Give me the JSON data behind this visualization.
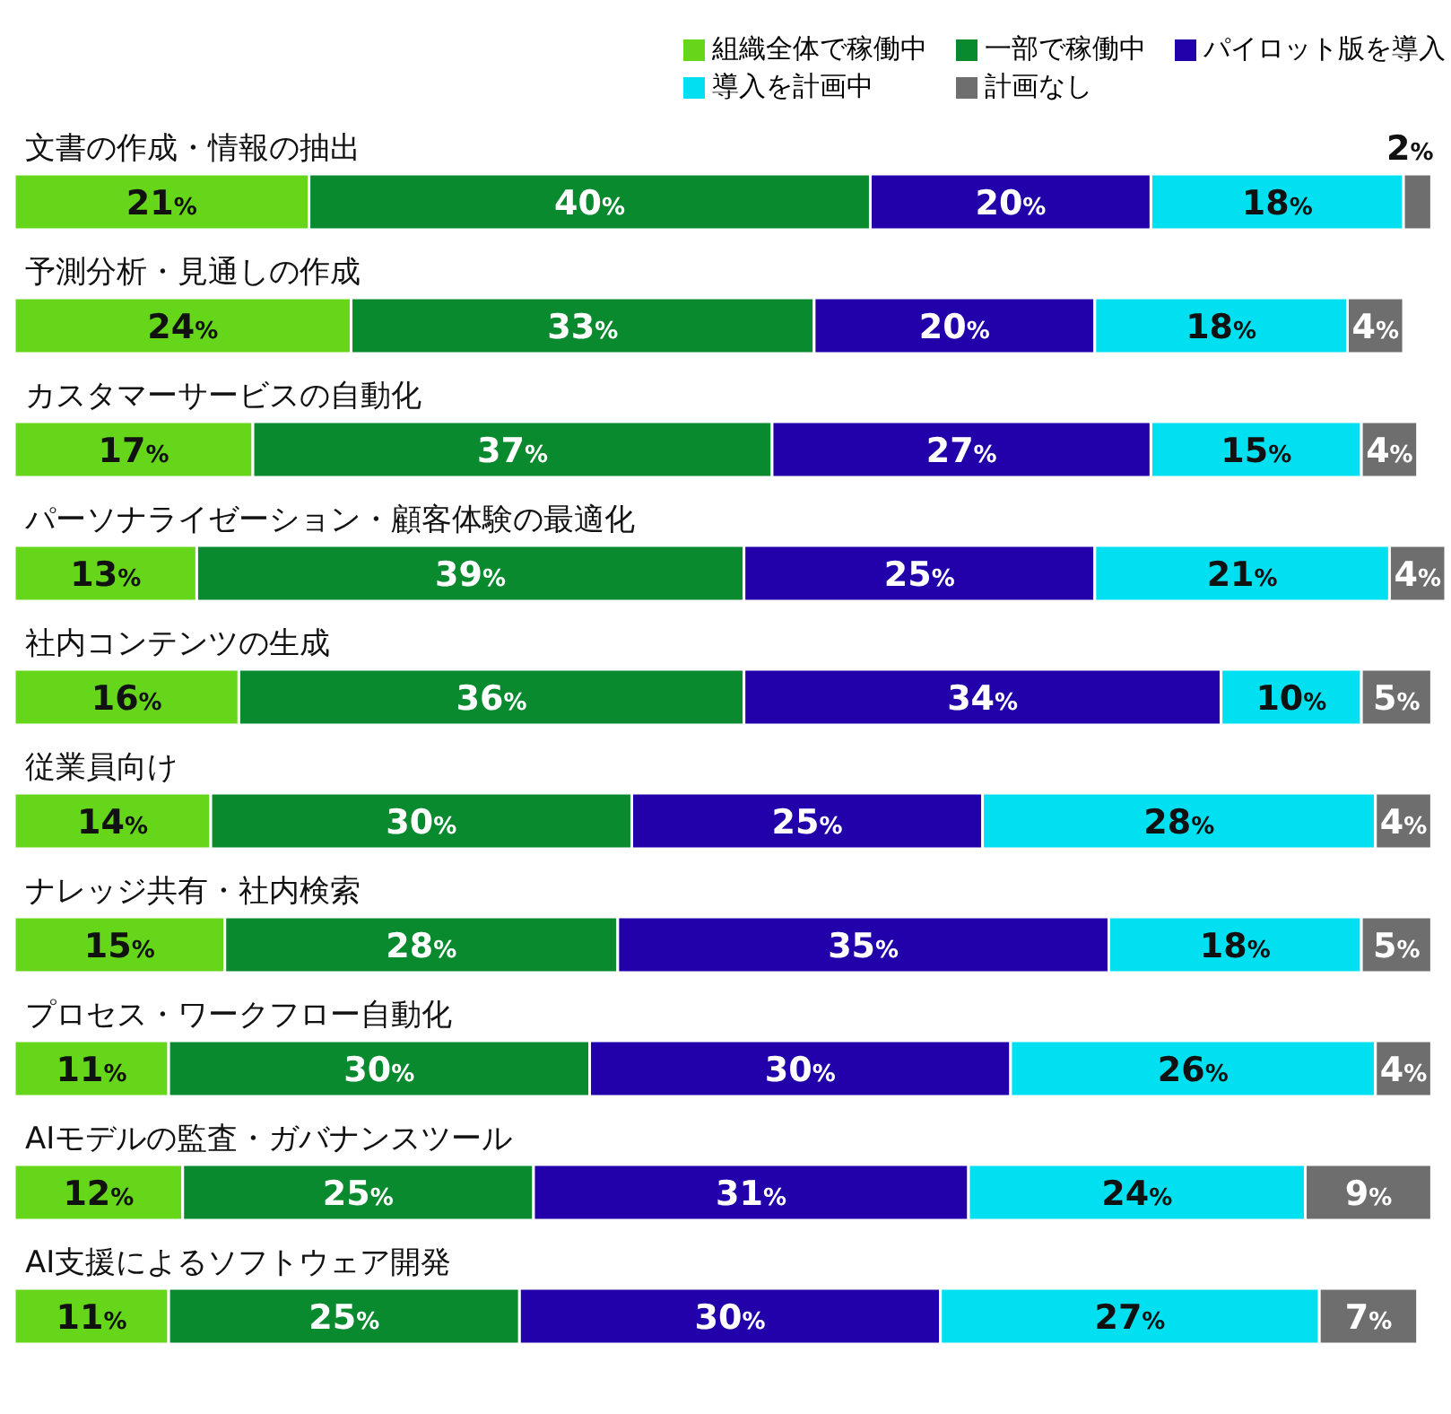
{
  "chart_data": {
    "type": "bar",
    "orientation": "horizontal",
    "stacked": true,
    "legend": "top right",
    "categories": [
      "文書の作成・情報の抽出",
      "予測分析・見通しの作成",
      "カスタマーサービスの自動化",
      "パーソナライゼーション・顧客体験の最適化",
      "社内コンテンツの生成",
      "従業員向け",
      "ナレッジ共有・社内検索",
      "プロセス・ワークフロー自動化",
      "AIモデルの監査・ガバナンスツール",
      "AI支援によるソフトウェア開発"
    ],
    "series": [
      {
        "name": "組織全体で稼働中",
        "color": "#66d61a",
        "values": [
          21,
          24,
          17,
          13,
          16,
          14,
          15,
          11,
          12,
          11
        ],
        "value_labels": [
          "21%",
          "24%",
          "17%",
          "13%",
          "16%",
          "14%",
          "15%",
          "11%",
          "12%",
          "11%"
        ]
      },
      {
        "name": "一部で稼働中",
        "color": "#0a8a2e",
        "values": [
          40,
          33,
          37,
          39,
          36,
          30,
          28,
          30,
          25,
          25
        ],
        "value_labels": [
          "40%",
          "33%",
          "37%",
          "39%",
          "36%",
          "30%",
          "28%",
          "30%",
          "25%",
          "25%"
        ]
      },
      {
        "name": "パイロット版を導入",
        "color": "#2200aa",
        "values": [
          20,
          20,
          27,
          25,
          34,
          25,
          35,
          30,
          31,
          30
        ],
        "value_labels": [
          "20%",
          "20%",
          "27%",
          "25%",
          "34%",
          "25%",
          "35%",
          "30%",
          "31%",
          "30%"
        ]
      },
      {
        "name": "導入を計画中",
        "color": "#00e0f0",
        "values": [
          18,
          18,
          15,
          21,
          10,
          28,
          18,
          26,
          24,
          27
        ],
        "value_labels": [
          "18%",
          "18%",
          "15%",
          "21%",
          "10%",
          "28%",
          "18%",
          "26%",
          "24%",
          "27%"
        ]
      },
      {
        "name": "計画なし",
        "color": "#6e6e6e",
        "values": [
          2,
          4,
          4,
          4,
          5,
          4,
          5,
          4,
          9,
          7
        ],
        "value_labels": [
          "2%",
          "4%",
          "4%",
          "4%",
          "5%",
          "4%",
          "5%",
          "4%",
          "9%",
          "7%"
        ]
      }
    ]
  }
}
